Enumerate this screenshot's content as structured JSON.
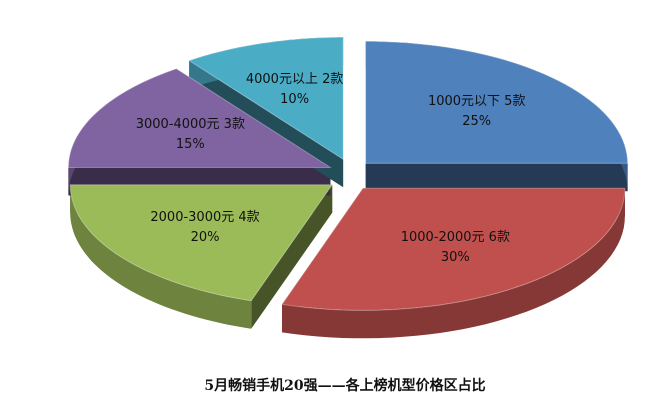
{
  "chart_data": {
    "type": "pie3d",
    "title": "5月畅销手机20强——各上榜机型价格区占比",
    "categories": [
      "1000元以下 5款",
      "1000-2000元 6款",
      "2000-3000元 4款",
      "3000-4000元 3款",
      "4000元以上 2款"
    ],
    "values": [
      25,
      30,
      20,
      15,
      10
    ],
    "value_labels": [
      "25%",
      "30%",
      "20%",
      "15%",
      "10%"
    ],
    "colors": [
      "#4f81bd",
      "#c0504d",
      "#9bbb59",
      "#8064a2",
      "#4bacc6"
    ]
  }
}
